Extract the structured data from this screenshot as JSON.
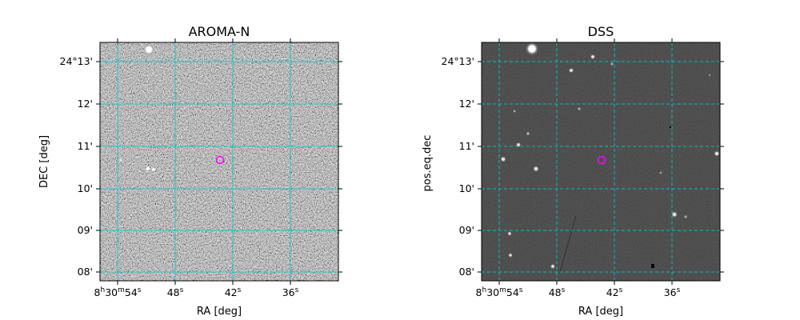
{
  "panels": [
    {
      "id": "aroma",
      "title": "AROMA-N",
      "xlabel": "RA [deg]",
      "ylabel": "DEC [deg]",
      "style": "noisy",
      "grid_color": "#00c8c8",
      "marker_color": "#ff00ff"
    },
    {
      "id": "dss",
      "title": "DSS",
      "xlabel": "RA [deg]",
      "ylabel": "pos.eq.dec",
      "style": "dark",
      "grid_color": "#00c8c8",
      "marker_color": "#ff00ff"
    }
  ],
  "ra_ticks": [
    {
      "main": "8",
      "sup1": "h",
      "mid": "30",
      "sup2": "m",
      "sec": "54",
      "sup3": "s"
    },
    {
      "main": "",
      "sup1": "",
      "mid": "",
      "sup2": "",
      "sec": "48",
      "sup3": "s"
    },
    {
      "main": "",
      "sup1": "",
      "mid": "",
      "sup2": "",
      "sec": "42",
      "sup3": "s"
    },
    {
      "main": "",
      "sup1": "",
      "mid": "",
      "sup2": "",
      "sec": "36",
      "sup3": "s"
    }
  ],
  "dec_ticks": [
    "24°13'",
    "12'",
    "11'",
    "10'",
    "09'",
    "08'"
  ],
  "target_marker": {
    "shape": "circle"
  }
}
